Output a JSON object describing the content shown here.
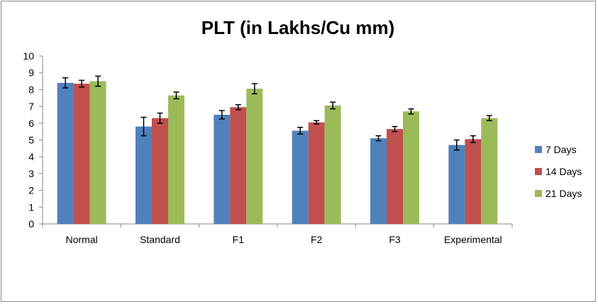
{
  "chart_data": {
    "type": "bar",
    "title": "PLT (in Lakhs/Cu mm)",
    "xlabel": "",
    "ylabel": "",
    "categories": [
      "Normal",
      "Standard",
      "F1",
      "F2",
      "F3",
      "Experimental"
    ],
    "ylim": [
      0,
      10
    ],
    "yticks": [
      0,
      1,
      2,
      3,
      4,
      5,
      6,
      7,
      8,
      9,
      10
    ],
    "grid": false,
    "legend_position": "right",
    "series": [
      {
        "name": "7 Days",
        "color": "#4f81bd",
        "values": [
          8.4,
          5.8,
          6.5,
          5.55,
          5.1,
          4.7
        ],
        "errors": [
          0.3,
          0.55,
          0.25,
          0.2,
          0.15,
          0.3
        ]
      },
      {
        "name": "14 Days",
        "color": "#c0504d",
        "values": [
          8.35,
          6.3,
          6.95,
          6.05,
          5.65,
          5.05
        ],
        "errors": [
          0.2,
          0.3,
          0.15,
          0.1,
          0.15,
          0.2
        ]
      },
      {
        "name": "21 Days",
        "color": "#9bbb59",
        "values": [
          8.5,
          7.65,
          8.05,
          7.05,
          6.7,
          6.3
        ],
        "errors": [
          0.3,
          0.2,
          0.3,
          0.2,
          0.15,
          0.15
        ]
      }
    ]
  }
}
